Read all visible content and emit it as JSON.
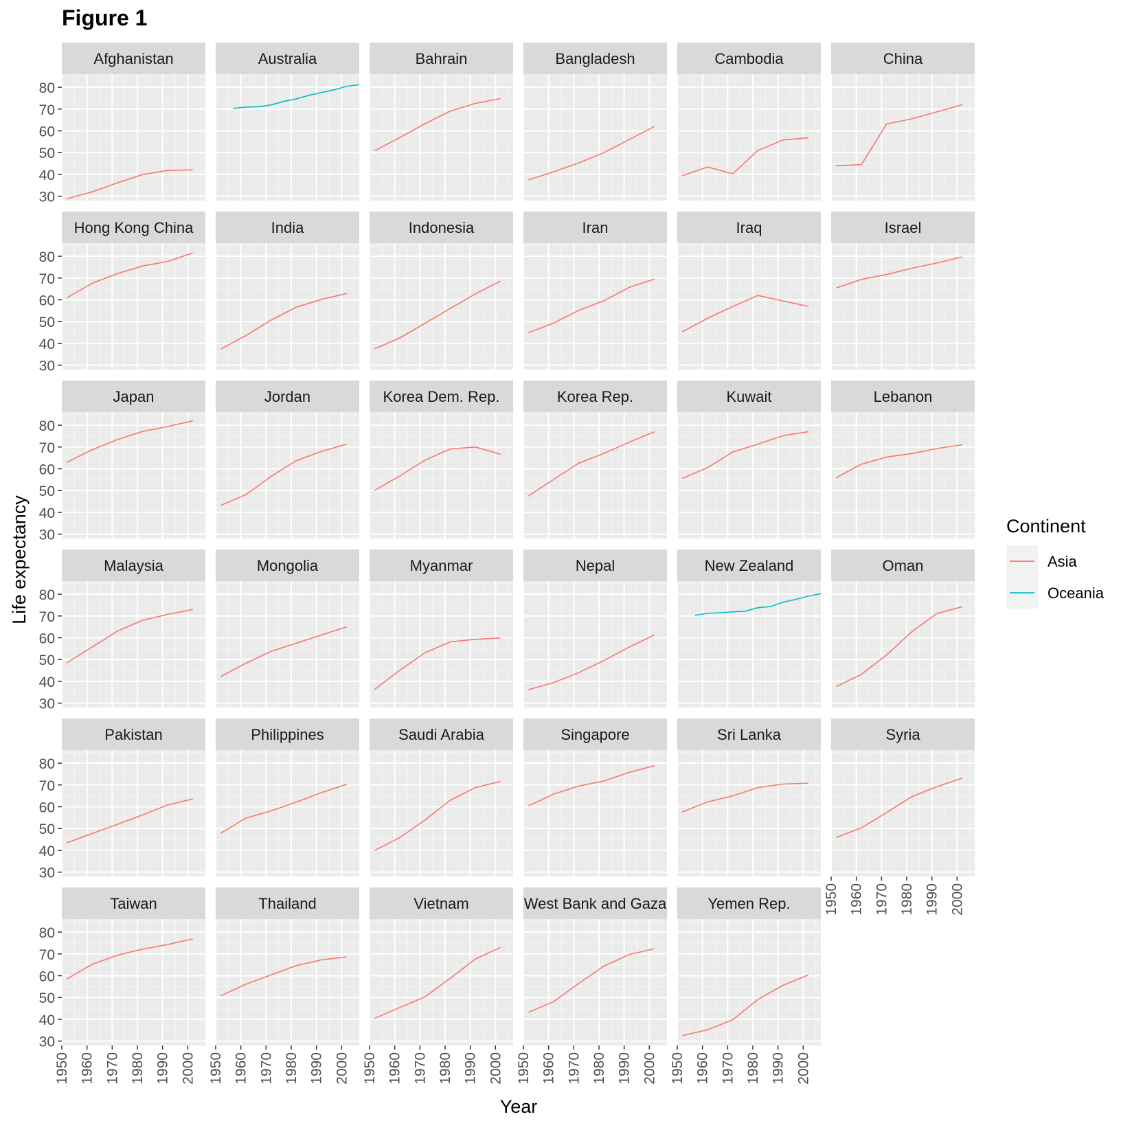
{
  "title": "Figure 1",
  "chart_data": {
    "type": "line",
    "title": "Figure 1",
    "xlabel": "Year",
    "ylabel": "Life expectancy",
    "xlim": [
      1950,
      2007
    ],
    "ylim": [
      28,
      86
    ],
    "x_ticks": [
      1950,
      1960,
      1970,
      1980,
      1990,
      2000
    ],
    "y_ticks": [
      30,
      40,
      50,
      60,
      70,
      80
    ],
    "grid": true,
    "legend": {
      "title": "Continent",
      "placement": "right",
      "entries": [
        {
          "name": "Asia",
          "color": "#F8766D"
        },
        {
          "name": "Oceania",
          "color": "#00BFC4"
        }
      ]
    },
    "panels": [
      {
        "name": "Afghanistan",
        "continent": "Asia",
        "x": [
          1952,
          1962,
          1972,
          1982,
          1992,
          2002
        ],
        "y": [
          28.8,
          32,
          36.1,
          39.9,
          41.8,
          42.1
        ]
      },
      {
        "name": "Australia",
        "continent": "Oceania",
        "x": [
          1957,
          1962,
          1967,
          1972,
          1977,
          1982,
          1987,
          1992,
          1997,
          2002,
          2007
        ],
        "y": [
          70.3,
          70.9,
          71.1,
          71.9,
          73.5,
          74.7,
          76.3,
          77.6,
          78.8,
          80.4,
          81.2
        ]
      },
      {
        "name": "Bahrain",
        "continent": "Asia",
        "x": [
          1952,
          1962,
          1972,
          1982,
          1992,
          2002
        ],
        "y": [
          50.9,
          56.9,
          63.3,
          69,
          72.6,
          74.8
        ]
      },
      {
        "name": "Bangladesh",
        "continent": "Asia",
        "x": [
          1952,
          1962,
          1972,
          1982,
          1992,
          2002
        ],
        "y": [
          37.5,
          41.2,
          45.3,
          50,
          56,
          62
        ]
      },
      {
        "name": "Cambodia",
        "continent": "Asia",
        "x": [
          1952,
          1962,
          1972,
          1982,
          1992,
          2002
        ],
        "y": [
          39.4,
          43.4,
          40.3,
          51,
          55.8,
          56.8
        ]
      },
      {
        "name": "China",
        "continent": "Asia",
        "x": [
          1952,
          1962,
          1972,
          1982,
          1992,
          2002
        ],
        "y": [
          44,
          44.5,
          63.1,
          65.5,
          68.7,
          72
        ]
      },
      {
        "name": "Hong Kong China",
        "continent": "Asia",
        "x": [
          1952,
          1962,
          1972,
          1982,
          1992,
          2002
        ],
        "y": [
          60.9,
          67.6,
          72,
          75.5,
          77.6,
          81.5
        ]
      },
      {
        "name": "India",
        "continent": "Asia",
        "x": [
          1952,
          1962,
          1972,
          1982,
          1992,
          2002
        ],
        "y": [
          37.4,
          43.6,
          50.7,
          56.6,
          60.2,
          62.9
        ]
      },
      {
        "name": "Indonesia",
        "continent": "Asia",
        "x": [
          1952,
          1962,
          1972,
          1982,
          1992,
          2002
        ],
        "y": [
          37.5,
          42.5,
          49.2,
          56,
          62.7,
          68.6
        ]
      },
      {
        "name": "Iran",
        "continent": "Asia",
        "x": [
          1952,
          1962,
          1972,
          1982,
          1992,
          2002
        ],
        "y": [
          44.9,
          49.3,
          55.2,
          59.6,
          65.7,
          69.5
        ]
      },
      {
        "name": "Iraq",
        "continent": "Asia",
        "x": [
          1952,
          1962,
          1972,
          1982,
          1992,
          2002
        ],
        "y": [
          45.3,
          51.5,
          56.9,
          62,
          59.5,
          57
        ]
      },
      {
        "name": "Israel",
        "continent": "Asia",
        "x": [
          1952,
          1962,
          1972,
          1982,
          1992,
          2002
        ],
        "y": [
          65.4,
          69.4,
          71.6,
          74.5,
          76.9,
          79.7
        ]
      },
      {
        "name": "Japan",
        "continent": "Asia",
        "x": [
          1952,
          1962,
          1972,
          1982,
          1992,
          2002
        ],
        "y": [
          63,
          68.7,
          73.4,
          77.1,
          79.4,
          82
        ]
      },
      {
        "name": "Jordan",
        "continent": "Asia",
        "x": [
          1952,
          1962,
          1972,
          1982,
          1992,
          2002
        ],
        "y": [
          43.2,
          48.1,
          56.5,
          63.7,
          68,
          71.3
        ]
      },
      {
        "name": "Korea Dem. Rep.",
        "continent": "Asia",
        "x": [
          1952,
          1962,
          1972,
          1982,
          1992,
          2002
        ],
        "y": [
          50.1,
          56.7,
          63.98,
          69.1,
          70,
          66.7
        ]
      },
      {
        "name": "Korea Rep.",
        "continent": "Asia",
        "x": [
          1952,
          1962,
          1972,
          1982,
          1992,
          2002
        ],
        "y": [
          47.5,
          55.1,
          62.6,
          67.1,
          72.2,
          77
        ]
      },
      {
        "name": "Kuwait",
        "continent": "Asia",
        "x": [
          1952,
          1962,
          1972,
          1982,
          1992,
          2002
        ],
        "y": [
          55.6,
          60.5,
          67.7,
          71.3,
          75.2,
          77
        ]
      },
      {
        "name": "Lebanon",
        "continent": "Asia",
        "x": [
          1952,
          1962,
          1972,
          1982,
          1992,
          2002
        ],
        "y": [
          55.9,
          62.1,
          65.4,
          67,
          69.3,
          71
        ]
      },
      {
        "name": "Malaysia",
        "continent": "Asia",
        "x": [
          1952,
          1962,
          1972,
          1982,
          1992,
          2002
        ],
        "y": [
          48.5,
          55.7,
          63,
          68,
          70.7,
          73
        ]
      },
      {
        "name": "Mongolia",
        "continent": "Asia",
        "x": [
          1952,
          1962,
          1972,
          1982,
          1992,
          2002
        ],
        "y": [
          42.2,
          48.3,
          53.8,
          57.5,
          61.3,
          65
        ]
      },
      {
        "name": "Myanmar",
        "continent": "Asia",
        "x": [
          1952,
          1962,
          1972,
          1982,
          1992,
          2002
        ],
        "y": [
          36.3,
          45.1,
          53.1,
          58.1,
          59.3,
          59.9
        ]
      },
      {
        "name": "Nepal",
        "continent": "Asia",
        "x": [
          1952,
          1962,
          1972,
          1982,
          1992,
          2002
        ],
        "y": [
          36.2,
          39.4,
          44,
          49.6,
          55.7,
          61.3
        ]
      },
      {
        "name": "New Zealand",
        "continent": "Oceania",
        "x": [
          1957,
          1962,
          1967,
          1972,
          1977,
          1982,
          1987,
          1992,
          1997,
          2002,
          2007
        ],
        "y": [
          70.3,
          71.2,
          71.5,
          71.9,
          72.2,
          73.8,
          74.3,
          76.3,
          77.6,
          79.1,
          80.2
        ]
      },
      {
        "name": "Oman",
        "continent": "Asia",
        "x": [
          1952,
          1962,
          1972,
          1982,
          1992,
          2002
        ],
        "y": [
          37.6,
          43.2,
          52.1,
          62.7,
          71.2,
          74.2
        ]
      },
      {
        "name": "Pakistan",
        "continent": "Asia",
        "x": [
          1952,
          1962,
          1972,
          1982,
          1992,
          2002
        ],
        "y": [
          43.4,
          47.7,
          51.9,
          56.2,
          60.8,
          63.6
        ]
      },
      {
        "name": "Philippines",
        "continent": "Asia",
        "x": [
          1952,
          1962,
          1972,
          1982,
          1992,
          2002
        ],
        "y": [
          47.8,
          54.8,
          58.1,
          62.1,
          66.5,
          70.3
        ]
      },
      {
        "name": "Saudi Arabia",
        "continent": "Asia",
        "x": [
          1952,
          1962,
          1972,
          1982,
          1992,
          2002
        ],
        "y": [
          39.9,
          45.8,
          53.9,
          63,
          68.8,
          71.6
        ]
      },
      {
        "name": "Singapore",
        "continent": "Asia",
        "x": [
          1952,
          1962,
          1972,
          1982,
          1992,
          2002
        ],
        "y": [
          60.4,
          65.8,
          69.5,
          71.8,
          75.8,
          78.8
        ]
      },
      {
        "name": "Sri Lanka",
        "continent": "Asia",
        "x": [
          1952,
          1962,
          1972,
          1982,
          1992,
          2002
        ],
        "y": [
          57.6,
          62.2,
          65,
          68.8,
          70.4,
          70.8
        ]
      },
      {
        "name": "Syria",
        "continent": "Asia",
        "x": [
          1952,
          1962,
          1972,
          1982,
          1992,
          2002
        ],
        "y": [
          45.9,
          50.3,
          57.3,
          64.6,
          69.2,
          73.1
        ]
      },
      {
        "name": "Taiwan",
        "continent": "Asia",
        "x": [
          1952,
          1962,
          1972,
          1982,
          1992,
          2002
        ],
        "y": [
          58.5,
          65.2,
          69.4,
          72.2,
          74.3,
          76.9
        ]
      },
      {
        "name": "Thailand",
        "continent": "Asia",
        "x": [
          1952,
          1962,
          1972,
          1982,
          1992,
          2002
        ],
        "y": [
          50.8,
          56.1,
          60.4,
          64.6,
          67.3,
          68.6
        ]
      },
      {
        "name": "Vietnam",
        "continent": "Asia",
        "x": [
          1952,
          1962,
          1972,
          1982,
          1992,
          2002
        ],
        "y": [
          40.4,
          45.4,
          50.3,
          58.8,
          67.7,
          73
        ]
      },
      {
        "name": "West Bank and Gaza",
        "continent": "Asia",
        "x": [
          1952,
          1962,
          1972,
          1982,
          1992,
          2002
        ],
        "y": [
          43.2,
          48.1,
          56.5,
          64.4,
          69.7,
          72.4
        ]
      },
      {
        "name": "Yemen Rep.",
        "continent": "Asia",
        "x": [
          1952,
          1962,
          1972,
          1982,
          1992,
          2002
        ],
        "y": [
          32.5,
          35.2,
          39.8,
          49.1,
          55.6,
          60.3
        ]
      }
    ]
  }
}
